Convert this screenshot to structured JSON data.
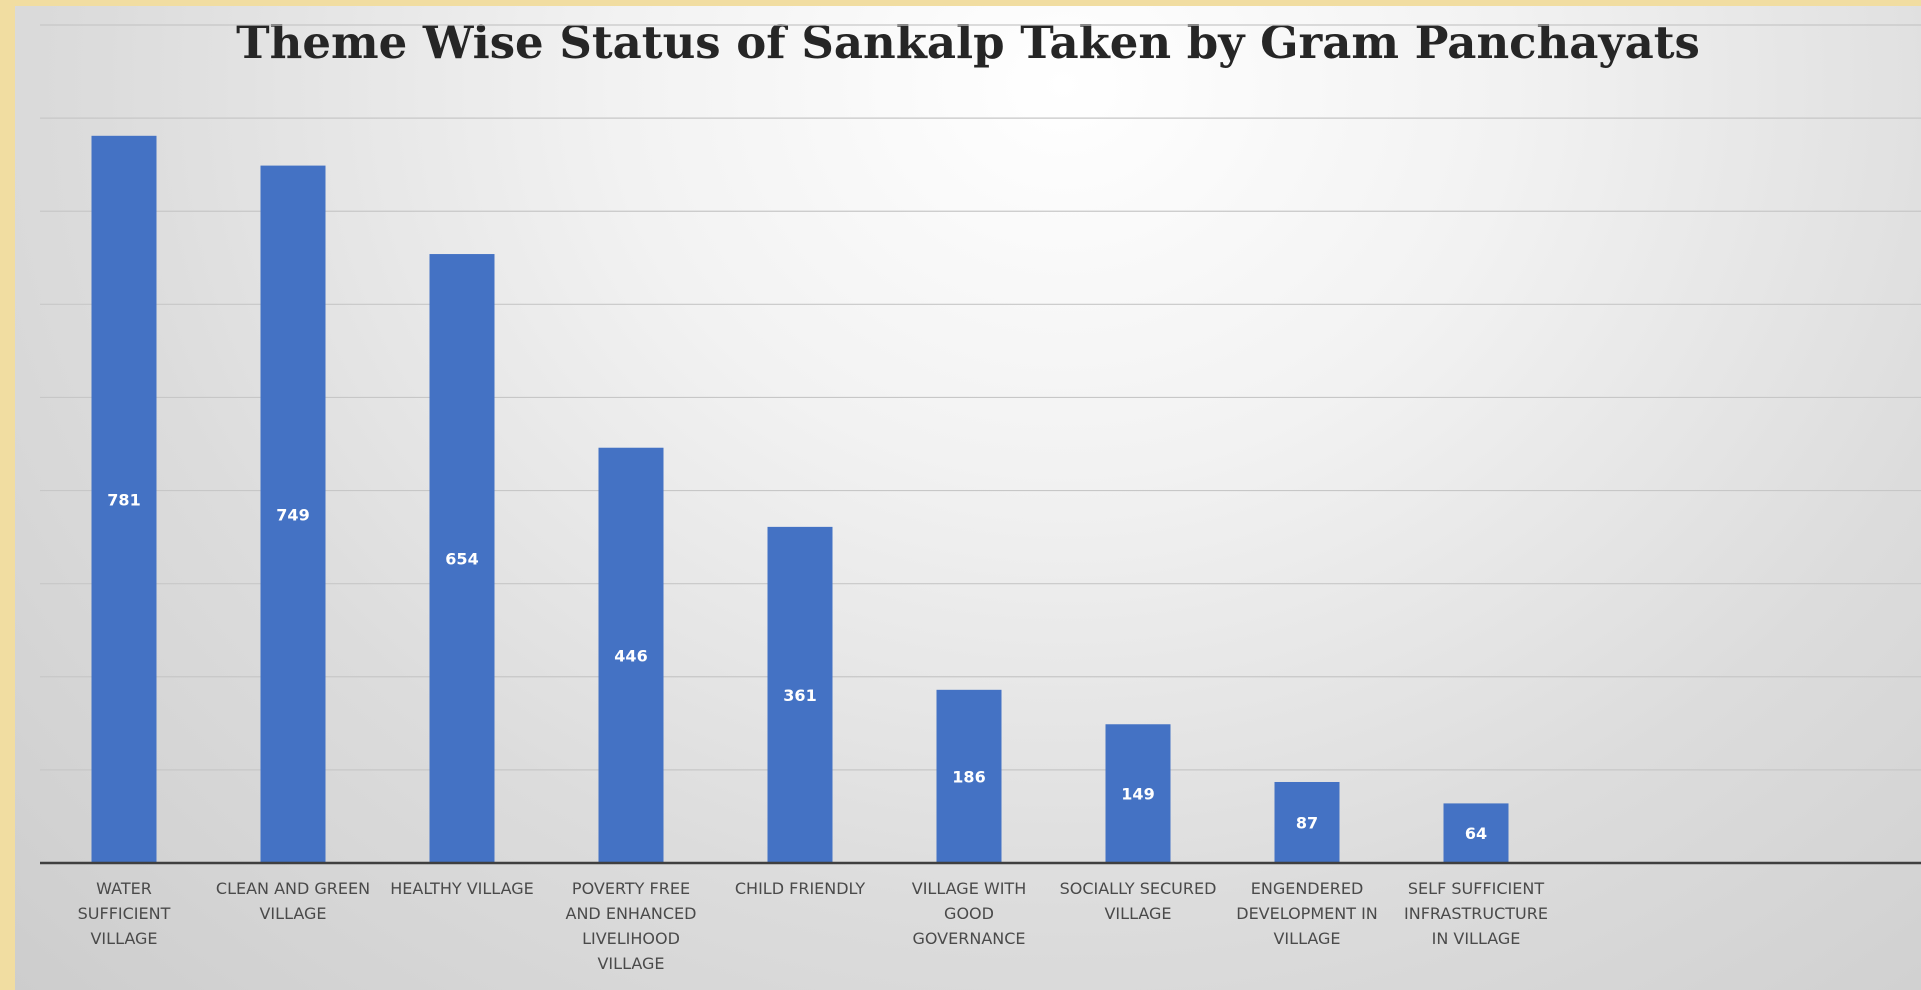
{
  "colors": {
    "bar": "#4472c4",
    "grid": "#c7c7c7",
    "axis": "#3f3f3f"
  },
  "chart_data": {
    "type": "bar",
    "title": "Theme Wise Status of Sankalp Taken by Gram Panchayats",
    "xlabel": "",
    "ylabel": "",
    "ylim": [
      0,
      900
    ],
    "grid": true,
    "legend": "none",
    "categories": [
      [
        "WATER",
        "SUFFICIENT",
        "VILLAGE"
      ],
      [
        "CLEAN AND GREEN",
        "VILLAGE"
      ],
      [
        "HEALTHY VILLAGE"
      ],
      [
        "POVERTY FREE",
        "AND ENHANCED",
        "LIVELIHOOD",
        "VILLAGE"
      ],
      [
        "CHILD FRIENDLY"
      ],
      [
        "VILLAGE WITH",
        "GOOD",
        "GOVERNANCE"
      ],
      [
        "SOCIALLY SECURED",
        "VILLAGE"
      ],
      [
        "ENGENDERED",
        "DEVELOPMENT IN",
        "VILLAGE"
      ],
      [
        "SELF SUFFICIENT",
        "INFRASTRUCTURE",
        "IN VILLAGE"
      ]
    ],
    "values": [
      781,
      749,
      654,
      446,
      361,
      186,
      149,
      87,
      64
    ]
  }
}
